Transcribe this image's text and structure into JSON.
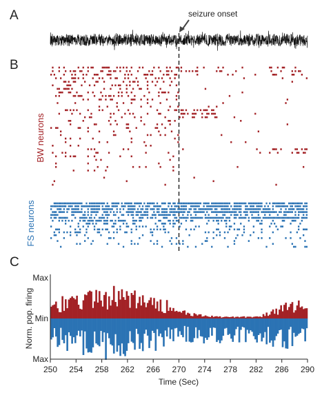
{
  "panels": {
    "a": "A",
    "b": "B",
    "c": "C"
  },
  "annotation": {
    "seizure_onset": "seizure onset",
    "onset_time": 270
  },
  "colors": {
    "bw": "#a32226",
    "fs": "#2b73b4",
    "eeg": "#111111",
    "axis": "#222222"
  },
  "raster": {
    "bw_label": "BW neurons",
    "fs_label": "FS neurons",
    "bw_neuron_count": 34,
    "fs_neuron_count": 16
  },
  "chart_data": {
    "type": "bar",
    "xlabel": "Time (Sec)",
    "ylabel": "Norm. pop. firing",
    "xlim": [
      250,
      290
    ],
    "x_ticks": [
      250,
      254,
      258,
      262,
      266,
      270,
      274,
      278,
      282,
      286,
      290
    ],
    "y_tick_labels": {
      "max_top": "Max",
      "min": "Min",
      "max_bottom": "Max"
    },
    "bin_width": 0.25,
    "series": [
      {
        "name": "BW neurons",
        "direction": "up",
        "color": "#a32226",
        "envelope": [
          [
            250,
            0.35
          ],
          [
            256,
            0.45
          ],
          [
            258,
            0.55
          ],
          [
            262,
            0.5
          ],
          [
            266,
            0.35
          ],
          [
            268,
            0.3
          ],
          [
            270,
            0.15
          ],
          [
            274,
            0.05
          ],
          [
            278,
            0.04
          ],
          [
            282,
            0.04
          ],
          [
            284,
            0.12
          ],
          [
            286,
            0.25
          ],
          [
            288,
            0.3
          ],
          [
            290,
            0.35
          ]
        ]
      },
      {
        "name": "FS neurons",
        "direction": "down",
        "color": "#2b73b4",
        "envelope": [
          [
            250,
            0.45
          ],
          [
            254,
            0.6
          ],
          [
            258,
            0.7
          ],
          [
            262,
            0.6
          ],
          [
            266,
            0.55
          ],
          [
            270,
            0.45
          ],
          [
            274,
            0.4
          ],
          [
            278,
            0.4
          ],
          [
            282,
            0.4
          ],
          [
            286,
            0.5
          ],
          [
            290,
            0.45
          ]
        ]
      }
    ]
  }
}
